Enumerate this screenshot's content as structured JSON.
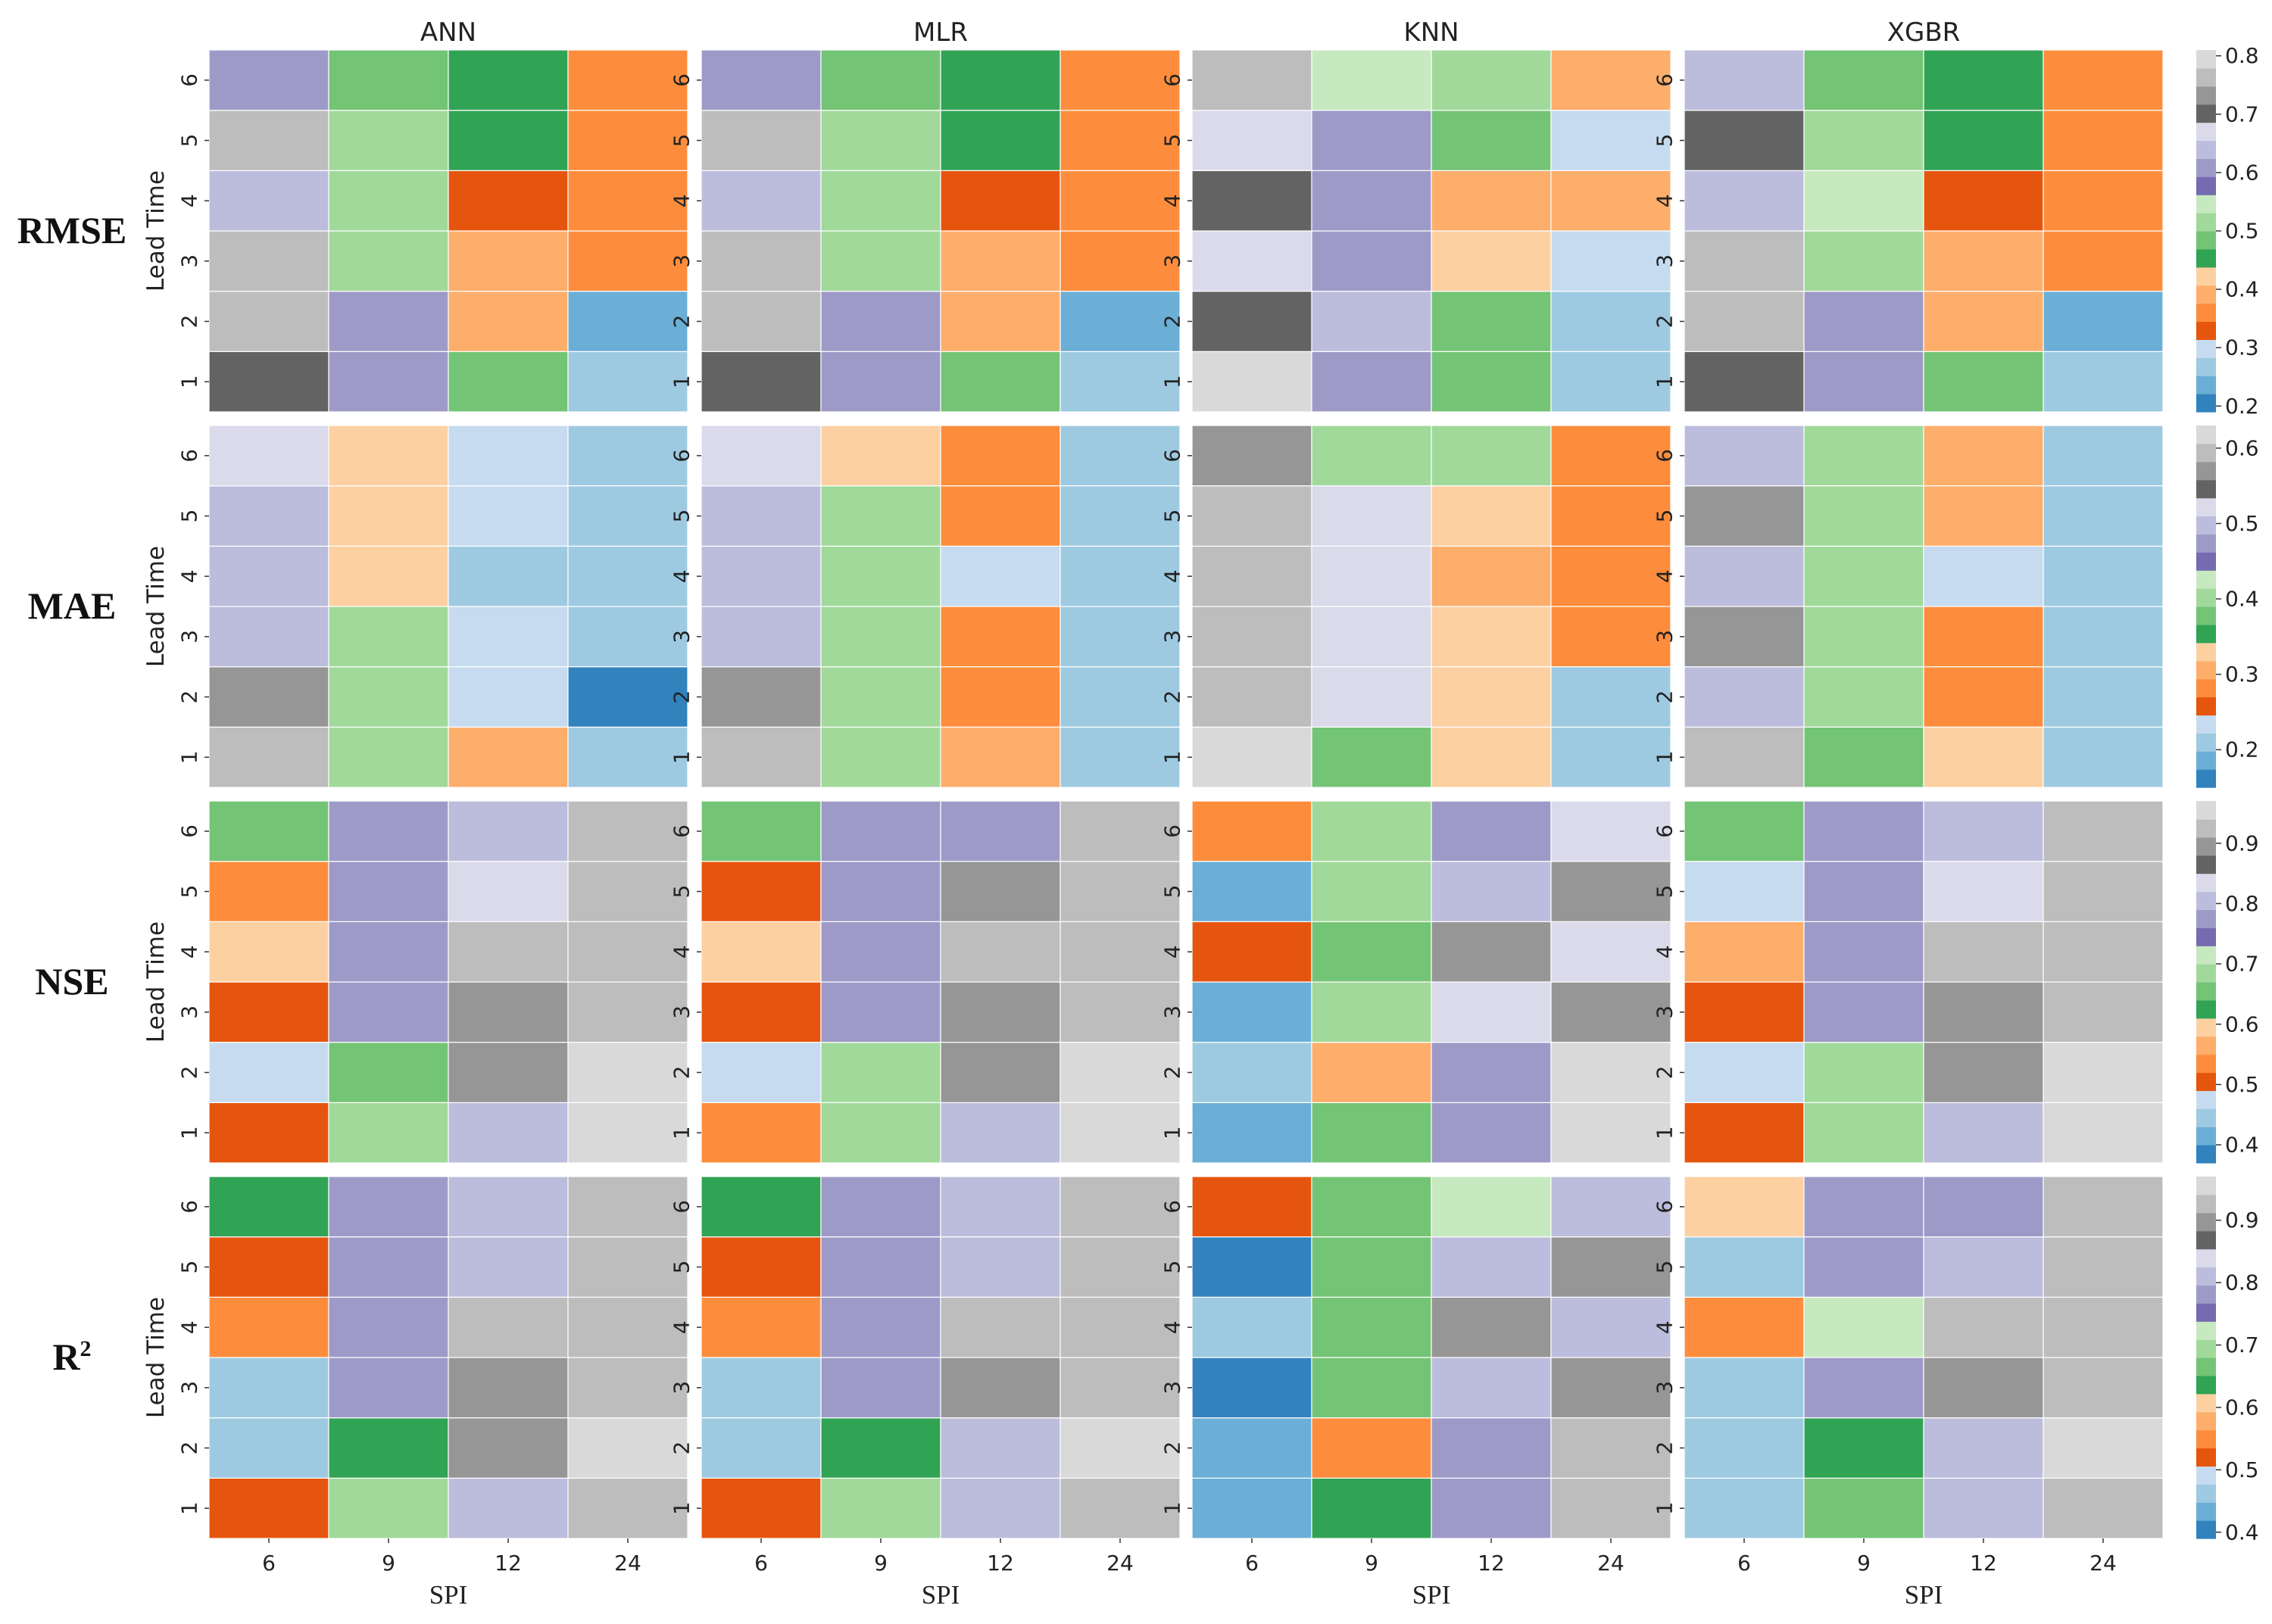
{
  "chart_data": {
    "type": "heatmap",
    "models": [
      "ANN",
      "MLR",
      "KNN",
      "XGBR"
    ],
    "xlabel": "SPI",
    "ylabel": "Lead Time",
    "x_categories": [
      "6",
      "9",
      "12",
      "24"
    ],
    "y_categories": [
      "1",
      "2",
      "3",
      "4",
      "5",
      "6"
    ],
    "cell_value_order": "rows listed for Lead Time 1..6, columns for SPI 6, 9, 12, 24",
    "palette": [
      "#3182bd",
      "#6baed6",
      "#9ecae1",
      "#c6dbef",
      "#e6550d",
      "#fd8d3c",
      "#fdae6b",
      "#fdd0a2",
      "#31a354",
      "#74c476",
      "#a1d99b",
      "#c7e9c0",
      "#756bb1",
      "#9e9ac8",
      "#bcbddc",
      "#dadaeb",
      "#636363",
      "#969696",
      "#bdbdbd",
      "#d9d9d9"
    ],
    "metrics": [
      {
        "name": "RMSE",
        "title_main": "RMSE",
        "title_sup": "",
        "colorbar": {
          "min": 0.19,
          "max": 0.81,
          "ticks": [
            "0.2",
            "0.3",
            "0.4",
            "0.5",
            "0.6",
            "0.7",
            "0.8"
          ]
        },
        "values": {
          "ANN": [
            [
              0.71,
              0.6,
              0.47,
              0.28
            ],
            [
              0.75,
              0.61,
              0.38,
              0.25
            ],
            [
              0.75,
              0.52,
              0.38,
              0.35
            ],
            [
              0.65,
              0.52,
              0.34,
              0.35
            ],
            [
              0.75,
              0.52,
              0.44,
              0.35
            ],
            [
              0.61,
              0.5,
              0.46,
              0.35
            ]
          ],
          "MLR": [
            [
              0.71,
              0.6,
              0.47,
              0.28
            ],
            [
              0.75,
              0.61,
              0.38,
              0.25
            ],
            [
              0.75,
              0.52,
              0.38,
              0.35
            ],
            [
              0.65,
              0.52,
              0.34,
              0.35
            ],
            [
              0.75,
              0.52,
              0.44,
              0.35
            ],
            [
              0.61,
              0.5,
              0.46,
              0.35
            ]
          ],
          "KNN": [
            [
              0.79,
              0.61,
              0.5,
              0.28
            ],
            [
              0.71,
              0.65,
              0.5,
              0.28
            ],
            [
              0.68,
              0.61,
              0.43,
              0.31
            ],
            [
              0.71,
              0.61,
              0.38,
              0.38
            ],
            [
              0.68,
              0.61,
              0.47,
              0.31
            ],
            [
              0.75,
              0.54,
              0.52,
              0.38
            ]
          ],
          "XGBR": [
            [
              0.71,
              0.6,
              0.47,
              0.28
            ],
            [
              0.75,
              0.61,
              0.38,
              0.25
            ],
            [
              0.75,
              0.52,
              0.38,
              0.35
            ],
            [
              0.65,
              0.55,
              0.34,
              0.35
            ],
            [
              0.71,
              0.52,
              0.44,
              0.35
            ],
            [
              0.63,
              0.5,
              0.46,
              0.35
            ]
          ]
        }
      },
      {
        "name": "MAE",
        "title_main": "MAE",
        "title_sup": "",
        "colorbar": {
          "min": 0.15,
          "max": 0.63,
          "ticks": [
            "0.2",
            "0.3",
            "0.4",
            "0.5",
            "0.6"
          ]
        },
        "values": {
          "ANN": [
            [
              0.59,
              0.39,
              0.31,
              0.21
            ],
            [
              0.57,
              0.39,
              0.24,
              0.17
            ],
            [
              0.5,
              0.41,
              0.24,
              0.21
            ],
            [
              0.5,
              0.34,
              0.21,
              0.21
            ],
            [
              0.5,
              0.34,
              0.24,
              0.21
            ],
            [
              0.52,
              0.34,
              0.24,
              0.21
            ]
          ],
          "MLR": [
            [
              0.59,
              0.39,
              0.31,
              0.21
            ],
            [
              0.57,
              0.39,
              0.28,
              0.21
            ],
            [
              0.49,
              0.4,
              0.28,
              0.22
            ],
            [
              0.5,
              0.41,
              0.24,
              0.21
            ],
            [
              0.49,
              0.41,
              0.28,
              0.21
            ],
            [
              0.52,
              0.34,
              0.28,
              0.21
            ]
          ],
          "KNN": [
            [
              0.62,
              0.38,
              0.34,
              0.22
            ],
            [
              0.59,
              0.53,
              0.34,
              0.22
            ],
            [
              0.6,
              0.53,
              0.32,
              0.28
            ],
            [
              0.59,
              0.53,
              0.31,
              0.28
            ],
            [
              0.59,
              0.53,
              0.32,
              0.28
            ],
            [
              0.57,
              0.39,
              0.41,
              0.28
            ]
          ],
          "XGBR": [
            [
              0.59,
              0.38,
              0.32,
              0.22
            ],
            [
              0.49,
              0.39,
              0.28,
              0.21
            ],
            [
              0.57,
              0.4,
              0.28,
              0.22
            ],
            [
              0.49,
              0.4,
              0.24,
              0.22
            ],
            [
              0.57,
              0.4,
              0.31,
              0.22
            ],
            [
              0.5,
              0.41,
              0.31,
              0.22
            ]
          ]
        }
      },
      {
        "name": "NSE",
        "title_main": "NSE",
        "title_sup": "",
        "colorbar": {
          "min": 0.37,
          "max": 0.97,
          "ticks": [
            "0.4",
            "0.5",
            "0.6",
            "0.7",
            "0.8",
            "0.9"
          ]
        },
        "values": {
          "ANN": [
            [
              0.5,
              0.69,
              0.8,
              0.94
            ],
            [
              0.46,
              0.66,
              0.9,
              0.96
            ],
            [
              0.5,
              0.78,
              0.9,
              0.92
            ],
            [
              0.59,
              0.78,
              0.92,
              0.92
            ],
            [
              0.53,
              0.78,
              0.82,
              0.92
            ],
            [
              0.66,
              0.76,
              0.8,
              0.92
            ]
          ],
          "MLR": [
            [
              0.53,
              0.69,
              0.8,
              0.94
            ],
            [
              0.46,
              0.67,
              0.9,
              0.96
            ],
            [
              0.5,
              0.78,
              0.9,
              0.92
            ],
            [
              0.59,
              0.78,
              0.92,
              0.92
            ],
            [
              0.5,
              0.78,
              0.9,
              0.92
            ],
            [
              0.66,
              0.76,
              0.78,
              0.92
            ]
          ],
          "KNN": [
            [
              0.41,
              0.66,
              0.78,
              0.94
            ],
            [
              0.43,
              0.56,
              0.78,
              0.94
            ],
            [
              0.41,
              0.69,
              0.82,
              0.9
            ],
            [
              0.5,
              0.66,
              0.9,
              0.82
            ],
            [
              0.41,
              0.69,
              0.8,
              0.9
            ],
            [
              0.53,
              0.69,
              0.76,
              0.82
            ]
          ],
          "XGBR": [
            [
              0.5,
              0.69,
              0.8,
              0.94
            ],
            [
              0.46,
              0.67,
              0.9,
              0.96
            ],
            [
              0.5,
              0.76,
              0.9,
              0.92
            ],
            [
              0.56,
              0.76,
              0.92,
              0.92
            ],
            [
              0.46,
              0.78,
              0.82,
              0.92
            ],
            [
              0.64,
              0.78,
              0.8,
              0.92
            ]
          ]
        }
      },
      {
        "name": "R2",
        "title_main": "R",
        "title_sup": "2",
        "colorbar": {
          "min": 0.39,
          "max": 0.97,
          "ticks": [
            "0.4",
            "0.5",
            "0.6",
            "0.7",
            "0.8",
            "0.9"
          ]
        },
        "values": {
          "ANN": [
            [
              0.53,
              0.69,
              0.8,
              0.94
            ],
            [
              0.46,
              0.64,
              0.9,
              0.96
            ],
            [
              0.47,
              0.77,
              0.9,
              0.92
            ],
            [
              0.56,
              0.77,
              0.92,
              0.92
            ],
            [
              0.53,
              0.78,
              0.82,
              0.92
            ],
            [
              0.64,
              0.77,
              0.8,
              0.92
            ]
          ],
          "MLR": [
            [
              0.53,
              0.69,
              0.8,
              0.94
            ],
            [
              0.46,
              0.64,
              0.82,
              0.96
            ],
            [
              0.47,
              0.77,
              0.9,
              0.92
            ],
            [
              0.56,
              0.77,
              0.92,
              0.92
            ],
            [
              0.53,
              0.77,
              0.82,
              0.92
            ],
            [
              0.64,
              0.77,
              0.8,
              0.92
            ]
          ],
          "KNN": [
            [
              0.43,
              0.64,
              0.78,
              0.92
            ],
            [
              0.43,
              0.56,
              0.78,
              0.94
            ],
            [
              0.41,
              0.66,
              0.82,
              0.9
            ],
            [
              0.47,
              0.66,
              0.9,
              0.82
            ],
            [
              0.41,
              0.66,
              0.8,
              0.9
            ],
            [
              0.53,
              0.66,
              0.71,
              0.82
            ]
          ],
          "XGBR": [
            [
              0.47,
              0.66,
              0.8,
              0.94
            ],
            [
              0.47,
              0.64,
              0.82,
              0.96
            ],
            [
              0.47,
              0.77,
              0.9,
              0.92
            ],
            [
              0.54,
              0.71,
              0.92,
              0.92
            ],
            [
              0.45,
              0.78,
              0.82,
              0.92
            ],
            [
              0.6,
              0.77,
              0.78,
              0.92
            ]
          ]
        }
      }
    ]
  }
}
